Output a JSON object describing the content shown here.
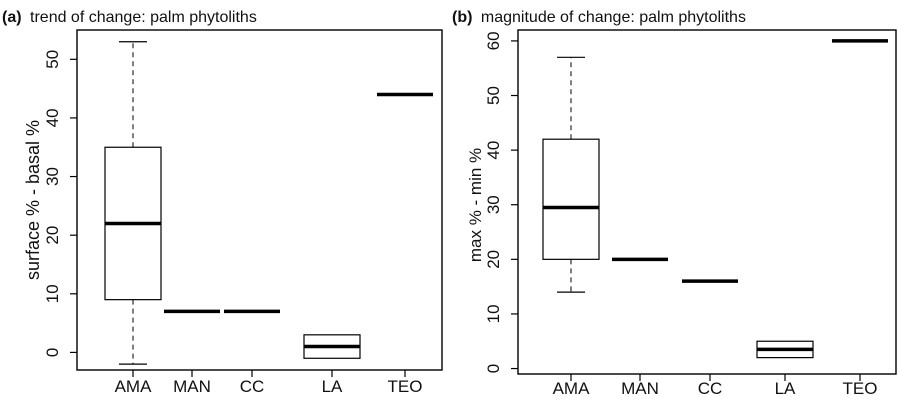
{
  "chart_data": [
    {
      "type": "box",
      "panel_label": "(a)",
      "title": "trend of change: palm phytoliths",
      "xlabel": "",
      "ylabel": "surface % - basal %",
      "categories": [
        "AMA",
        "MAN",
        "CC",
        "LA",
        "TEO"
      ],
      "ylim": [
        -3,
        55
      ],
      "yticks": [
        0,
        10,
        20,
        30,
        40,
        50
      ],
      "boxes": [
        {
          "category": "AMA",
          "whisker_low": -2,
          "q1": 9,
          "median": 22,
          "q3": 35,
          "whisker_high": 53
        },
        {
          "category": "MAN",
          "whisker_low": 7,
          "q1": 7,
          "median": 7,
          "q3": 7,
          "whisker_high": 7
        },
        {
          "category": "CC",
          "whisker_low": 7,
          "q1": 7,
          "median": 7,
          "q3": 7,
          "whisker_high": 7
        },
        {
          "category": "LA",
          "whisker_low": -1,
          "q1": -1,
          "median": 1,
          "q3": 3,
          "whisker_high": 3
        },
        {
          "category": "TEO",
          "whisker_low": 44,
          "q1": 44,
          "median": 44,
          "q3": 44,
          "whisker_high": 44
        }
      ]
    },
    {
      "type": "box",
      "panel_label": "(b)",
      "title": "magnitude of change: palm phytoliths",
      "xlabel": "",
      "ylabel": "max % - min %",
      "categories": [
        "AMA",
        "MAN",
        "CC",
        "LA",
        "TEO"
      ],
      "ylim": [
        -1,
        62
      ],
      "yticks": [
        0,
        10,
        20,
        30,
        40,
        50,
        60
      ],
      "boxes": [
        {
          "category": "AMA",
          "whisker_low": 14,
          "q1": 20,
          "median": 29.5,
          "q3": 42,
          "whisker_high": 57
        },
        {
          "category": "MAN",
          "whisker_low": 20,
          "q1": 20,
          "median": 20,
          "q3": 20,
          "whisker_high": 20
        },
        {
          "category": "CC",
          "whisker_low": 16,
          "q1": 16,
          "median": 16,
          "q3": 16,
          "whisker_high": 16
        },
        {
          "category": "LA",
          "whisker_low": 2,
          "q1": 2,
          "median": 3.5,
          "q3": 5,
          "whisker_high": 5
        },
        {
          "category": "TEO",
          "whisker_low": 60,
          "q1": 60,
          "median": 60,
          "q3": 60,
          "whisker_high": 60
        }
      ]
    }
  ]
}
